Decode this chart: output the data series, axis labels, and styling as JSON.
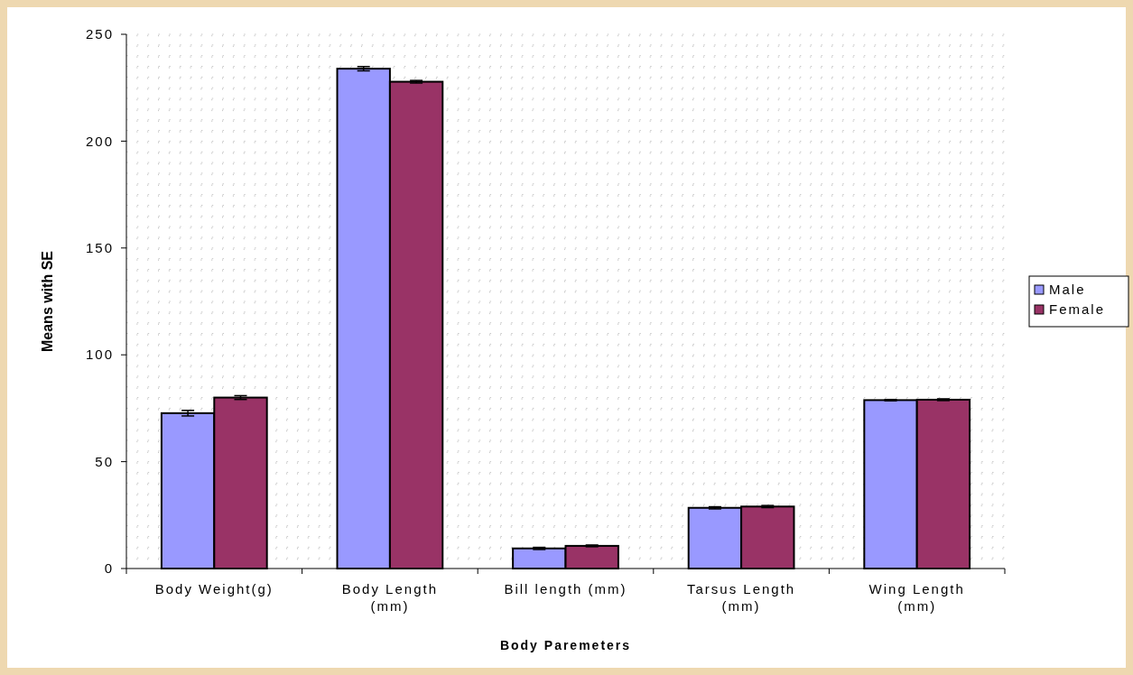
{
  "chart_data": {
    "type": "bar",
    "xlabel": "Body Paremeters",
    "ylabel": "Means with SE",
    "categories": [
      "Body Weight(g)",
      "Body Length\n(mm)",
      "Bill length (mm)",
      "Tarsus Length\n(mm)",
      "Wing Length\n(mm)"
    ],
    "series": [
      {
        "name": "Male",
        "color": "#9999ff",
        "values": [
          72.7,
          233.9,
          9.4,
          28.4,
          78.8
        ],
        "errors": [
          1.3,
          1.0,
          0.5,
          0.5,
          0.3
        ]
      },
      {
        "name": "Female",
        "color": "#993366",
        "values": [
          80.0,
          227.8,
          10.6,
          29.0,
          79.0
        ],
        "errors": [
          0.9,
          0.6,
          0.4,
          0.5,
          0.4
        ]
      }
    ],
    "ylim": [
      0,
      250
    ],
    "yticks": [
      0,
      50,
      100,
      150,
      200,
      250
    ],
    "grid": true,
    "legend": "right"
  }
}
